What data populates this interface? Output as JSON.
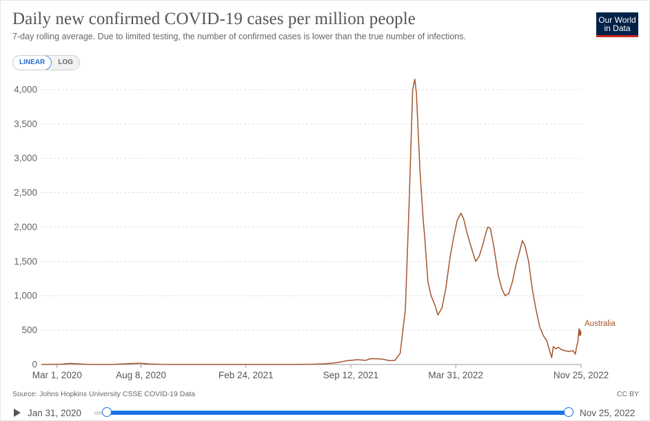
{
  "header": {
    "title": "Daily new confirmed COVID-19 cases per million people",
    "subtitle": "7-day rolling average. Due to limited testing, the number of confirmed cases is lower than the true number of infections.",
    "logo_line1": "Our World",
    "logo_line2": "in Data"
  },
  "controls": {
    "linear_label": "LINEAR",
    "log_label": "LOG",
    "selected": "linear"
  },
  "footer": {
    "source": "Source: Johns Hopkins University CSSE COVID-19 Data",
    "license": "CC BY"
  },
  "timeline": {
    "start_label": "Jan 31, 2020",
    "end_label": "Nov 25, 2022",
    "start_fraction": 0,
    "end_fraction": 1
  },
  "colors": {
    "series": "#a2552c",
    "grid": "#dddddd",
    "accent": "#1a73e8"
  },
  "chart_data": {
    "type": "line",
    "title": "Daily new confirmed COVID-19 cases per million people",
    "subtitle": "7-day rolling average. Due to limited testing, the number of confirmed cases is lower than the true number of infections.",
    "x_axis": "date",
    "xlim": [
      "2020-01-31",
      "2022-11-25"
    ],
    "ylim": [
      0,
      4200
    ],
    "x_ticks": [
      {
        "date": "2020-03-01",
        "label": "Mar 1, 2020"
      },
      {
        "date": "2020-08-08",
        "label": "Aug 8, 2020"
      },
      {
        "date": "2021-02-24",
        "label": "Feb 24, 2021"
      },
      {
        "date": "2021-09-12",
        "label": "Sep 12, 2021"
      },
      {
        "date": "2022-03-31",
        "label": "Mar 31, 2022"
      },
      {
        "date": "2022-11-25",
        "label": "Nov 25, 2022"
      }
    ],
    "y_ticks": [
      {
        "value": 0,
        "label": "0"
      },
      {
        "value": 500,
        "label": "500"
      },
      {
        "value": 1000,
        "label": "1,000"
      },
      {
        "value": 1500,
        "label": "1,500"
      },
      {
        "value": 2000,
        "label": "2,000"
      },
      {
        "value": 2500,
        "label": "2,500"
      },
      {
        "value": 3000,
        "label": "3,000"
      },
      {
        "value": 3500,
        "label": "3,500"
      },
      {
        "value": 4000,
        "label": "4,000"
      }
    ],
    "grid": true,
    "scale": "linear",
    "series": [
      {
        "name": "Australia",
        "color": "#a2552c",
        "points": [
          [
            "2020-01-31",
            0
          ],
          [
            "2020-03-10",
            5
          ],
          [
            "2020-03-25",
            16
          ],
          [
            "2020-04-10",
            10
          ],
          [
            "2020-05-01",
            1
          ],
          [
            "2020-06-15",
            1
          ],
          [
            "2020-07-10",
            10
          ],
          [
            "2020-08-01",
            18
          ],
          [
            "2020-08-08",
            17
          ],
          [
            "2020-08-25",
            8
          ],
          [
            "2020-09-15",
            2
          ],
          [
            "2020-12-01",
            1
          ],
          [
            "2021-01-10",
            1
          ],
          [
            "2021-06-01",
            1
          ],
          [
            "2021-07-01",
            4
          ],
          [
            "2021-07-25",
            10
          ],
          [
            "2021-08-15",
            25
          ],
          [
            "2021-09-05",
            55
          ],
          [
            "2021-09-25",
            70
          ],
          [
            "2021-10-10",
            60
          ],
          [
            "2021-10-20",
            85
          ],
          [
            "2021-11-10",
            80
          ],
          [
            "2021-11-25",
            55
          ],
          [
            "2021-12-05",
            60
          ],
          [
            "2021-12-15",
            160
          ],
          [
            "2021-12-25",
            800
          ],
          [
            "2022-01-01",
            2300
          ],
          [
            "2022-01-08",
            4000
          ],
          [
            "2022-01-12",
            4150
          ],
          [
            "2022-01-15",
            3950
          ],
          [
            "2022-01-22",
            2800
          ],
          [
            "2022-01-28",
            2100
          ],
          [
            "2022-01-31",
            1850
          ],
          [
            "2022-02-06",
            1200
          ],
          [
            "2022-02-12",
            1000
          ],
          [
            "2022-02-20",
            850
          ],
          [
            "2022-02-25",
            720
          ],
          [
            "2022-03-05",
            830
          ],
          [
            "2022-03-12",
            1100
          ],
          [
            "2022-03-20",
            1550
          ],
          [
            "2022-03-27",
            1850
          ],
          [
            "2022-04-03",
            2100
          ],
          [
            "2022-04-10",
            2200
          ],
          [
            "2022-04-15",
            2120
          ],
          [
            "2022-04-22",
            1900
          ],
          [
            "2022-04-29",
            1720
          ],
          [
            "2022-05-08",
            1500
          ],
          [
            "2022-05-15",
            1580
          ],
          [
            "2022-05-22",
            1750
          ],
          [
            "2022-05-27",
            1900
          ],
          [
            "2022-05-31",
            2000
          ],
          [
            "2022-06-05",
            1980
          ],
          [
            "2022-06-12",
            1700
          ],
          [
            "2022-06-20",
            1300
          ],
          [
            "2022-06-27",
            1100
          ],
          [
            "2022-07-03",
            1000
          ],
          [
            "2022-07-10",
            1030
          ],
          [
            "2022-07-17",
            1200
          ],
          [
            "2022-07-24",
            1450
          ],
          [
            "2022-07-31",
            1650
          ],
          [
            "2022-08-05",
            1800
          ],
          [
            "2022-08-10",
            1730
          ],
          [
            "2022-08-17",
            1500
          ],
          [
            "2022-08-24",
            1100
          ],
          [
            "2022-08-31",
            800
          ],
          [
            "2022-09-07",
            550
          ],
          [
            "2022-09-14",
            420
          ],
          [
            "2022-09-21",
            340
          ],
          [
            "2022-09-26",
            200
          ],
          [
            "2022-09-30",
            100
          ],
          [
            "2022-10-03",
            260
          ],
          [
            "2022-10-08",
            230
          ],
          [
            "2022-10-13",
            250
          ],
          [
            "2022-10-18",
            220
          ],
          [
            "2022-10-25",
            200
          ],
          [
            "2022-11-02",
            190
          ],
          [
            "2022-11-10",
            200
          ],
          [
            "2022-11-14",
            150
          ],
          [
            "2022-11-17",
            280
          ],
          [
            "2022-11-19",
            330
          ],
          [
            "2022-11-21",
            520
          ],
          [
            "2022-11-22",
            420
          ],
          [
            "2022-11-23",
            500
          ],
          [
            "2022-11-24",
            430
          ],
          [
            "2022-11-25",
            480
          ]
        ]
      }
    ]
  }
}
